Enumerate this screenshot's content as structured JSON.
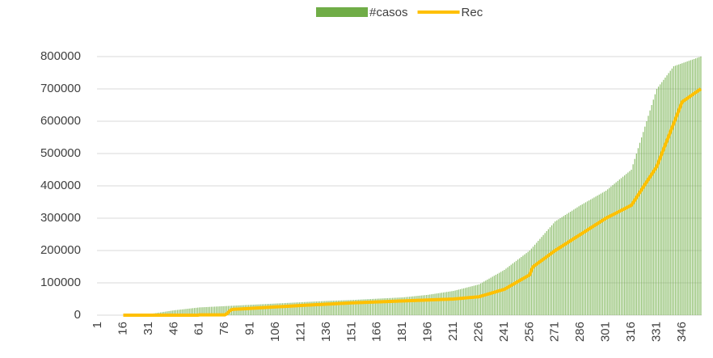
{
  "chart_data": {
    "type": "bar",
    "categories": [
      1,
      null,
      null,
      null,
      null,
      null,
      null,
      null,
      null,
      null,
      null,
      null,
      null,
      null,
      null,
      16,
      null,
      null,
      null,
      null,
      null,
      null,
      null,
      null,
      null,
      null,
      null,
      null,
      null,
      null,
      31,
      null,
      null,
      null,
      null,
      null,
      null,
      null,
      null,
      null,
      null,
      null,
      null,
      null,
      null,
      46,
      null,
      null,
      null,
      null,
      null,
      null,
      null,
      null,
      null,
      null,
      null,
      null,
      null,
      null,
      61,
      null,
      null,
      null,
      null,
      null,
      null,
      null,
      null,
      null,
      null,
      null,
      null,
      null,
      null,
      76,
      null,
      null,
      null,
      null,
      null,
      null,
      null,
      null,
      null,
      null,
      null,
      null,
      null,
      null,
      91,
      null,
      null,
      null,
      null,
      null,
      null,
      null,
      null,
      null,
      null,
      null,
      null,
      null,
      null,
      106,
      null,
      null,
      null,
      null,
      null,
      null,
      null,
      null,
      null,
      null,
      null,
      null,
      null,
      null,
      121,
      null,
      null,
      null,
      null,
      null,
      null,
      null,
      null,
      null,
      null,
      null,
      null,
      null,
      null,
      136,
      null,
      null,
      null,
      null,
      null,
      null,
      null,
      null,
      null,
      null,
      null,
      null,
      null,
      null,
      151,
      null,
      null,
      null,
      null,
      null,
      null,
      null,
      null,
      null,
      null,
      null,
      null,
      null,
      null,
      166,
      null,
      null,
      null,
      null,
      null,
      null,
      null,
      null,
      null,
      null,
      null,
      null,
      null,
      null,
      181,
      null,
      null,
      null,
      null,
      null,
      null,
      null,
      null,
      null,
      null,
      null,
      null,
      null,
      null,
      196,
      null,
      null,
      null,
      null,
      null,
      null,
      null,
      null,
      null,
      null,
      null,
      null,
      null,
      null,
      211,
      null,
      null,
      null,
      null,
      null,
      null,
      null,
      null,
      null,
      null,
      null,
      null,
      null,
      null,
      226,
      null,
      null,
      null,
      null,
      null,
      null,
      null,
      null,
      null,
      null,
      null,
      null,
      null,
      null,
      241,
      null,
      null,
      null,
      null,
      null,
      null,
      null,
      null,
      null,
      null,
      null,
      null,
      null,
      null,
      256,
      null,
      null,
      null,
      null,
      null,
      null,
      null,
      null,
      null,
      null,
      null,
      null,
      null,
      null,
      271,
      null,
      null,
      null,
      null,
      null,
      null,
      null,
      null,
      null,
      null,
      null,
      null,
      null,
      null,
      286,
      null,
      null,
      null,
      null,
      null,
      null,
      null,
      null,
      null,
      null,
      null,
      null,
      null,
      null,
      301,
      null,
      null,
      null,
      null,
      null,
      null,
      null,
      null,
      null,
      null,
      null,
      null,
      null,
      null,
      316,
      null,
      null,
      null,
      null,
      null,
      null,
      null,
      null,
      null,
      null,
      null,
      null,
      null,
      null,
      331,
      null,
      null,
      null,
      null,
      null,
      null,
      null,
      null,
      null,
      null,
      null,
      null,
      null,
      null,
      346,
      null,
      null,
      null,
      null,
      null,
      null,
      null,
      null,
      null,
      null,
      null
    ],
    "series": [
      {
        "name": "#casos",
        "type": "bar",
        "color": "#70ad47",
        "values": [
          null,
          null,
          null,
          null,
          null,
          null,
          null,
          null,
          null,
          null,
          null,
          null,
          null,
          null,
          null,
          100,
          300,
          500,
          700,
          900,
          1100,
          1300,
          1500,
          1700,
          1900,
          2100,
          2300,
          2500,
          2700,
          2800,
          3000,
          3800,
          4600,
          5400,
          6200,
          7000,
          7800,
          8600,
          9400,
          10200,
          11000,
          11800,
          12600,
          13400,
          14200,
          15000,
          15600,
          16200,
          16800,
          17400,
          18000,
          18600,
          19200,
          19800,
          20400,
          21000,
          21600,
          22200,
          22800,
          23400,
          24000,
          24300,
          24500,
          24800,
          25100,
          25300,
          25600,
          25900,
          26100,
          26400,
          26700,
          26900,
          27200,
          27500,
          27700,
          28000,
          28300,
          28500,
          28800,
          29100,
          29300,
          29600,
          29900,
          30100,
          30400,
          30700,
          30900,
          31200,
          31500,
          31700,
          32000,
          32300,
          32500,
          32800,
          33100,
          33300,
          33600,
          33900,
          34100,
          34400,
          34700,
          34900,
          35200,
          35500,
          35700,
          36000,
          36300,
          36500,
          36800,
          37100,
          37300,
          37600,
          37900,
          38100,
          38400,
          38700,
          38900,
          39200,
          39500,
          39700,
          40000,
          40300,
          40500,
          40800,
          41100,
          41300,
          41600,
          41900,
          42100,
          42400,
          42700,
          42900,
          43200,
          43500,
          43700,
          44000,
          44200,
          44400,
          44600,
          44800,
          45000,
          45200,
          45400,
          45600,
          45800,
          46000,
          46200,
          46400,
          46600,
          46800,
          47000,
          47300,
          47500,
          47800,
          48100,
          48300,
          48600,
          48900,
          49100,
          49400,
          49700,
          49900,
          50200,
          50500,
          50700,
          51000,
          51300,
          51500,
          51800,
          52100,
          52300,
          52600,
          52900,
          53100,
          53400,
          53700,
          53900,
          54200,
          54500,
          54700,
          55000,
          55500,
          56100,
          56600,
          57100,
          57700,
          58200,
          58700,
          59300,
          59800,
          60300,
          60900,
          61400,
          61900,
          62500,
          63000,
          63800,
          64600,
          65400,
          66200,
          67000,
          67800,
          68600,
          69400,
          70200,
          71000,
          71800,
          72600,
          73400,
          74200,
          75000,
          76300,
          77700,
          79000,
          80300,
          81700,
          83000,
          84300,
          85700,
          87000,
          88300,
          89700,
          91000,
          92300,
          93700,
          95000,
          98000,
          101000,
          104000,
          107000,
          110000,
          113000,
          116000,
          119000,
          122000,
          125000,
          128000,
          131000,
          134000,
          137000,
          140000,
          144000,
          148000,
          152000,
          156000,
          160000,
          164000,
          168000,
          172000,
          176000,
          180000,
          184000,
          188000,
          192000,
          196000,
          200000,
          206000,
          212000,
          218000,
          224000,
          230000,
          236000,
          242000,
          248000,
          254000,
          260000,
          266000,
          272000,
          278000,
          284000,
          290000,
          293300,
          296700,
          300000,
          303300,
          306700,
          310000,
          313300,
          316700,
          320000,
          323300,
          326700,
          330000,
          333300,
          336700,
          340000,
          343000,
          346000,
          349000,
          352000,
          355000,
          358000,
          361000,
          364000,
          367000,
          370000,
          373000,
          376000,
          379000,
          382000,
          385000,
          389300,
          393700,
          398000,
          402300,
          406700,
          411000,
          415300,
          419700,
          424000,
          428300,
          432700,
          437000,
          441300,
          445700,
          450000,
          466700,
          483300,
          500000,
          516700,
          533300,
          550000,
          566700,
          583300,
          600000,
          616700,
          633300,
          650000,
          666700,
          683300,
          700000,
          707000,
          714000,
          721000,
          728000,
          735000,
          742000,
          749000,
          756000,
          763000,
          770000,
          771900,
          773800,
          775600,
          777500,
          779400,
          781300,
          783100,
          785000,
          786900,
          788800,
          790600,
          792500,
          794400,
          796300,
          798100,
          800000
        ]
      },
      {
        "name": "Rec",
        "type": "line",
        "color": "#ffc000",
        "values": [
          null,
          null,
          null,
          null,
          null,
          null,
          null,
          null,
          null,
          null,
          null,
          null,
          null,
          null,
          null,
          0,
          0,
          0,
          0,
          0,
          0,
          0,
          0,
          0,
          0,
          0,
          0,
          0,
          0,
          0,
          0,
          0,
          0,
          0,
          0,
          0,
          0,
          0,
          0,
          0,
          0,
          0,
          0,
          0,
          0,
          0,
          0,
          0,
          0,
          0,
          0,
          0,
          0,
          0,
          0,
          0,
          0,
          0,
          0,
          0,
          1000,
          1000,
          1000,
          1000,
          1000,
          1000,
          1000,
          1000,
          1000,
          1000,
          1000,
          1000,
          1000,
          1000,
          1000,
          1000,
          4000,
          9000,
          14000,
          17000,
          18000,
          18300,
          18600,
          18900,
          19200,
          19500,
          19800,
          20100,
          20400,
          20700,
          21000,
          21300,
          21600,
          21900,
          22200,
          22500,
          22800,
          23100,
          23400,
          23700,
          24000,
          24300,
          24600,
          24900,
          25200,
          25500,
          25800,
          26100,
          26400,
          26700,
          27000,
          27300,
          27600,
          27900,
          28200,
          28500,
          28800,
          29100,
          29400,
          29700,
          30000,
          30300,
          30500,
          30800,
          31100,
          31300,
          31600,
          31900,
          32100,
          32400,
          32700,
          32900,
          33200,
          33500,
          33700,
          34000,
          34300,
          34500,
          34800,
          35100,
          35300,
          35600,
          35900,
          36100,
          36400,
          36700,
          36900,
          37200,
          37500,
          37700,
          38000,
          38200,
          38400,
          38600,
          38800,
          39000,
          39200,
          39400,
          39600,
          39800,
          40000,
          40200,
          40400,
          40600,
          40800,
          41000,
          41200,
          41400,
          41600,
          41800,
          42000,
          42200,
          42400,
          42600,
          42800,
          43000,
          43200,
          43400,
          43600,
          43800,
          44000,
          44200,
          44400,
          44600,
          44800,
          45000,
          45200,
          45400,
          45600,
          45800,
          46000,
          46200,
          46400,
          46600,
          46800,
          47000,
          47200,
          47400,
          47600,
          47800,
          48000,
          48200,
          48400,
          48600,
          48800,
          49000,
          49200,
          49400,
          49600,
          49800,
          50000,
          50500,
          50900,
          51400,
          51900,
          52300,
          52800,
          53300,
          53700,
          54200,
          54700,
          55100,
          55600,
          56100,
          56500,
          57000,
          58500,
          60100,
          61600,
          63100,
          64700,
          66200,
          67700,
          69300,
          70800,
          72300,
          73900,
          75400,
          76900,
          78500,
          80000,
          83000,
          86000,
          89000,
          92000,
          95000,
          98000,
          101000,
          104000,
          107000,
          110000,
          113000,
          116000,
          119000,
          122000,
          125000,
          140000,
          150000,
          153800,
          157700,
          161500,
          165400,
          169200,
          173100,
          176900,
          180800,
          184600,
          188500,
          192300,
          196200,
          200000,
          203300,
          206700,
          210000,
          213300,
          216700,
          220000,
          223300,
          226700,
          230000,
          233300,
          236700,
          240000,
          243300,
          246700,
          250000,
          253300,
          256700,
          260000,
          263300,
          266700,
          270000,
          273300,
          276700,
          280000,
          283300,
          286700,
          290000,
          293300,
          296700,
          300000,
          302700,
          305300,
          308000,
          310700,
          313300,
          316000,
          318700,
          321300,
          324000,
          326700,
          329300,
          332000,
          334700,
          337300,
          340000,
          348000,
          356000,
          364000,
          372000,
          380000,
          388000,
          396000,
          404000,
          412000,
          420000,
          428000,
          436000,
          444000,
          452000,
          460000,
          473300,
          486700,
          500000,
          513300,
          526700,
          540000,
          553300,
          566700,
          580000,
          593300,
          606700,
          620000,
          633300,
          646700,
          660000,
          663600,
          667300,
          670900,
          674500,
          678200,
          681800,
          685500,
          689100,
          692700,
          696400,
          700000
        ]
      }
    ],
    "ylim": [
      0,
      800000
    ],
    "yticks": [
      0,
      100000,
      200000,
      300000,
      400000,
      500000,
      600000,
      700000,
      800000
    ],
    "grid": true,
    "legend": "top"
  }
}
